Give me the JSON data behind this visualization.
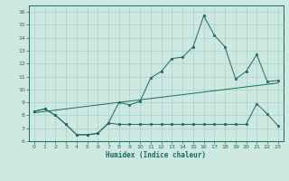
{
  "xlabel": "Humidex (Indice chaleur)",
  "xlim": [
    -0.5,
    23.5
  ],
  "ylim": [
    6,
    16.5
  ],
  "xticks": [
    0,
    1,
    2,
    3,
    4,
    5,
    6,
    7,
    8,
    9,
    10,
    11,
    12,
    13,
    14,
    15,
    16,
    17,
    18,
    19,
    20,
    21,
    22,
    23
  ],
  "yticks": [
    6,
    7,
    8,
    9,
    10,
    11,
    12,
    13,
    14,
    15,
    16
  ],
  "bg_color": "#cce8e0",
  "line_color": "#1a6b5a",
  "grid_color": "#aacfc8",
  "upper_x": [
    0,
    1,
    2,
    3,
    4,
    5,
    6,
    7,
    8,
    9,
    10,
    11,
    12,
    13,
    14,
    15,
    16,
    17,
    18,
    19,
    20,
    21,
    22,
    23
  ],
  "upper_y": [
    8.3,
    8.5,
    8.0,
    7.3,
    6.5,
    6.5,
    6.6,
    7.4,
    9.0,
    8.8,
    9.1,
    10.9,
    11.4,
    12.4,
    12.5,
    13.3,
    15.7,
    14.2,
    13.3,
    10.8,
    11.4,
    12.7,
    10.6,
    10.7
  ],
  "lower_x": [
    0,
    1,
    2,
    3,
    4,
    5,
    6,
    7,
    8,
    9,
    10,
    11,
    12,
    13,
    14,
    15,
    16,
    17,
    18,
    19,
    20,
    21,
    22,
    23
  ],
  "lower_y": [
    8.3,
    8.5,
    8.0,
    7.3,
    6.5,
    6.5,
    6.6,
    7.4,
    7.3,
    7.3,
    7.3,
    7.3,
    7.3,
    7.3,
    7.3,
    7.3,
    7.3,
    7.3,
    7.3,
    7.3,
    7.3,
    8.9,
    8.1,
    7.2
  ],
  "trend_x": [
    0,
    23
  ],
  "trend_y": [
    8.2,
    10.5
  ]
}
